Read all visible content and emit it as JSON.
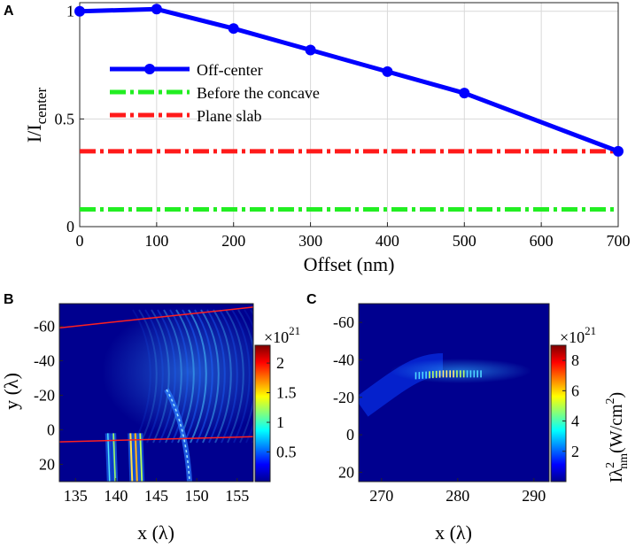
{
  "chart_data": [
    {
      "panel": "A",
      "type": "line",
      "xlabel": "Offset (nm)",
      "ylabel_main": "I/I",
      "ylabel_sub": "center",
      "xlim": [
        0,
        700
      ],
      "ylim": [
        0,
        1.04
      ],
      "xticks": [
        0,
        100,
        200,
        300,
        400,
        500,
        600,
        700
      ],
      "yticks": [
        {
          "v": 0,
          "t": "0"
        },
        {
          "v": 0.5,
          "t": "0.5"
        },
        {
          "v": 1,
          "t": "1"
        }
      ],
      "grid": true,
      "legend_position": "upper-left",
      "series": [
        {
          "name": "Off-center",
          "style": "solid-marker",
          "color": "#0000ff",
          "x": [
            0,
            100,
            200,
            300,
            400,
            500,
            700
          ],
          "y": [
            1.0,
            1.01,
            0.92,
            0.82,
            0.72,
            0.62,
            0.35
          ]
        },
        {
          "name": "Before the concave",
          "style": "dashdot",
          "color": "#22ee22",
          "x": [
            0,
            700
          ],
          "y": [
            0.08,
            0.08
          ]
        },
        {
          "name": "Plane slab",
          "style": "dashdot",
          "color": "#ff1a1a",
          "x": [
            0,
            700
          ],
          "y": [
            0.35,
            0.35
          ]
        }
      ]
    },
    {
      "panel": "B",
      "type": "heatmap",
      "xlabel": "x (λ)",
      "ylabel": "y (λ)",
      "xlim": [
        133,
        157
      ],
      "ylim": [
        -73,
        30
      ],
      "y_reversed": true,
      "xticks": [
        135,
        140,
        145,
        150,
        155
      ],
      "yticks": [
        -60,
        -40,
        -20,
        0,
        20
      ],
      "colorbar": {
        "min": 0,
        "max": 2.3,
        "ticks": [
          {
            "v": 0.5,
            "t": "0.5"
          },
          {
            "v": 1,
            "t": "1"
          },
          {
            "v": 1.5,
            "t": "1.5"
          },
          {
            "v": 2,
            "t": "2"
          }
        ],
        "exponent_base": "×10",
        "exponent": "21"
      },
      "red_lines": [
        {
          "x": [
            133,
            157
          ],
          "y": [
            -59,
            -71
          ]
        },
        {
          "x": [
            133,
            157
          ],
          "y": [
            7,
            4
          ]
        }
      ]
    },
    {
      "panel": "C",
      "type": "heatmap",
      "xlabel": "x (λ)",
      "xlim": [
        267,
        292
      ],
      "ylim": [
        -70,
        25
      ],
      "y_reversed": true,
      "xticks": [
        270,
        280,
        290
      ],
      "yticks": [
        -60,
        -40,
        -20,
        0,
        20
      ],
      "colorbar": {
        "min": 0,
        "max": 9,
        "ticks": [
          {
            "v": 2,
            "t": "2"
          },
          {
            "v": 4,
            "t": "4"
          },
          {
            "v": 6,
            "t": "6"
          },
          {
            "v": 8,
            "t": "8"
          }
        ],
        "exponent_base": "×10",
        "exponent": "21",
        "label_main": "Iλ",
        "label_sup": "2",
        "label_sub": "nm",
        "label_unit": "(W/cm",
        "label_unit_sup": "2",
        "label_unit_end": ")"
      }
    }
  ]
}
